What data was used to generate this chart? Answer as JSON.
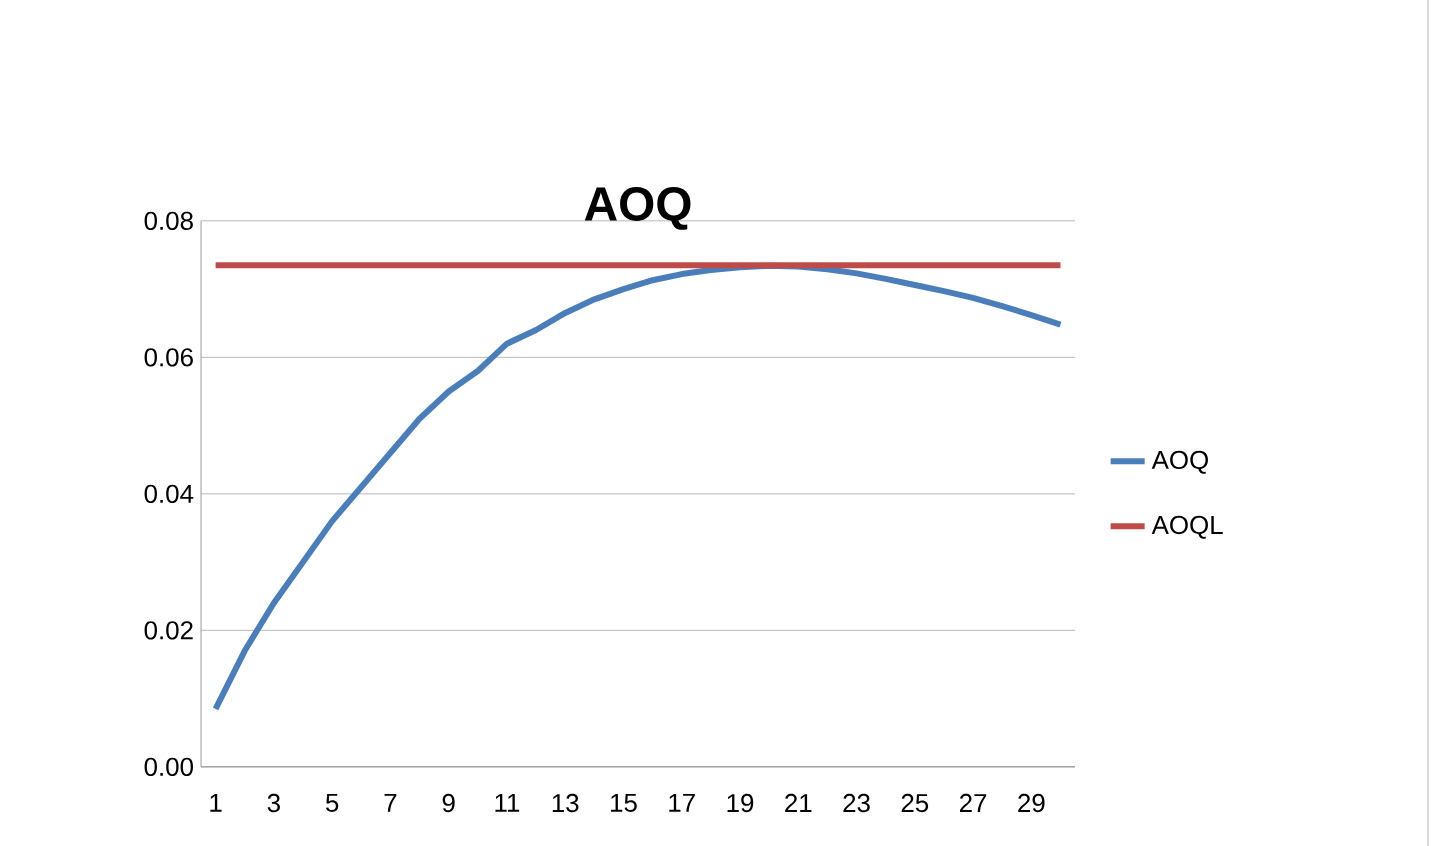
{
  "chart_data": {
    "type": "line",
    "title": "AOQ",
    "categories": [
      "1",
      null,
      "3",
      null,
      "5",
      null,
      "7",
      null,
      "9",
      null,
      "11",
      null,
      "13",
      null,
      "15",
      null,
      "17",
      null,
      "19",
      null,
      "21",
      null,
      "23",
      null,
      "25",
      null,
      "27",
      null,
      "29",
      null
    ],
    "series": [
      {
        "name": "AOQ",
        "color": "#4a7ebb",
        "values": [
          0.0085,
          0.017,
          0.024,
          0.03,
          0.036,
          0.041,
          0.046,
          0.051,
          0.055,
          0.058,
          0.062,
          0.064,
          0.0665,
          0.0685,
          0.07,
          0.0713,
          0.0722,
          0.0728,
          0.0732,
          0.0734,
          0.0733,
          0.0729,
          0.0723,
          0.0715,
          0.0706,
          0.0697,
          0.0687,
          0.0675,
          0.0662,
          0.0648
        ]
      },
      {
        "name": "AOQL",
        "color": "#be4b48",
        "values": [
          0.0735,
          0.0735,
          0.0735,
          0.0735,
          0.0735,
          0.0735,
          0.0735,
          0.0735,
          0.0735,
          0.0735,
          0.0735,
          0.0735,
          0.0735,
          0.0735,
          0.0735,
          0.0735,
          0.0735,
          0.0735,
          0.0735,
          0.0735,
          0.0735,
          0.0735,
          0.0735,
          0.0735,
          0.0735,
          0.0735,
          0.0735,
          0.0735,
          0.0735,
          0.0735
        ]
      }
    ],
    "ylim": [
      0,
      0.08
    ],
    "yticks": [
      {
        "value": 0,
        "label": "0.00"
      },
      {
        "value": 0.02,
        "label": "0.02"
      },
      {
        "value": 0.04,
        "label": "0.04"
      },
      {
        "value": 0.06,
        "label": "0.06"
      },
      {
        "value": 0.08,
        "label": "0.08"
      }
    ],
    "grid": "y",
    "legend": "right",
    "marker": "none",
    "line_style": "solid"
  }
}
